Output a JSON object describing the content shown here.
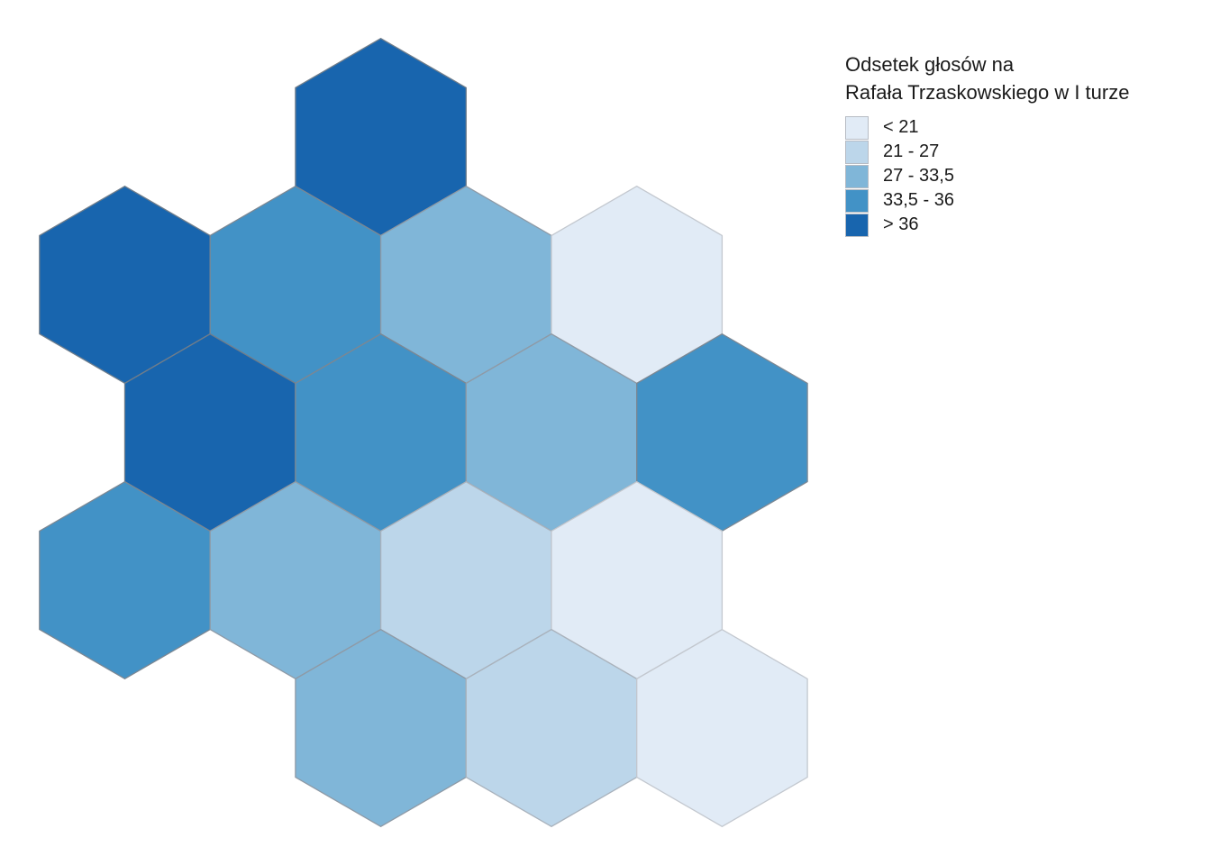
{
  "legend": {
    "title_line1": "Odsetek głosów na",
    "title_line2": "Rafała Trzaskowskiego w I turze",
    "classes": [
      {
        "label": "< 21",
        "color": "#e1ebf6"
      },
      {
        "label": "21 - 27",
        "color": "#bcd6ea"
      },
      {
        "label": "27 - 33,5",
        "color": "#80b6d8"
      },
      {
        "label": "33,5 - 36",
        "color": "#4292c6"
      },
      {
        "label": "> 36",
        "color": "#1865ae"
      }
    ]
  },
  "map_data": {
    "type": "hexagon-choropleth",
    "units_count": 16,
    "hexagons": [
      {
        "col": 1,
        "row": 0,
        "class": 4
      },
      {
        "col": 0,
        "row": 1,
        "class": 4
      },
      {
        "col": 1,
        "row": 1,
        "class": 3
      },
      {
        "col": 2,
        "row": 1,
        "class": 2
      },
      {
        "col": 3,
        "row": 1,
        "class": 0
      },
      {
        "col": 0,
        "row": 2,
        "class": 4
      },
      {
        "col": 1,
        "row": 2,
        "class": 3
      },
      {
        "col": 2,
        "row": 2,
        "class": 2
      },
      {
        "col": 3,
        "row": 2,
        "class": 3
      },
      {
        "col": 0,
        "row": 3,
        "class": 3
      },
      {
        "col": 1,
        "row": 3,
        "class": 2
      },
      {
        "col": 2,
        "row": 3,
        "class": 1
      },
      {
        "col": 3,
        "row": 3,
        "class": 0
      },
      {
        "col": 1,
        "row": 4,
        "class": 2
      },
      {
        "col": 2,
        "row": 4,
        "class": 1
      },
      {
        "col": 3,
        "row": 4,
        "class": 0
      }
    ]
  }
}
